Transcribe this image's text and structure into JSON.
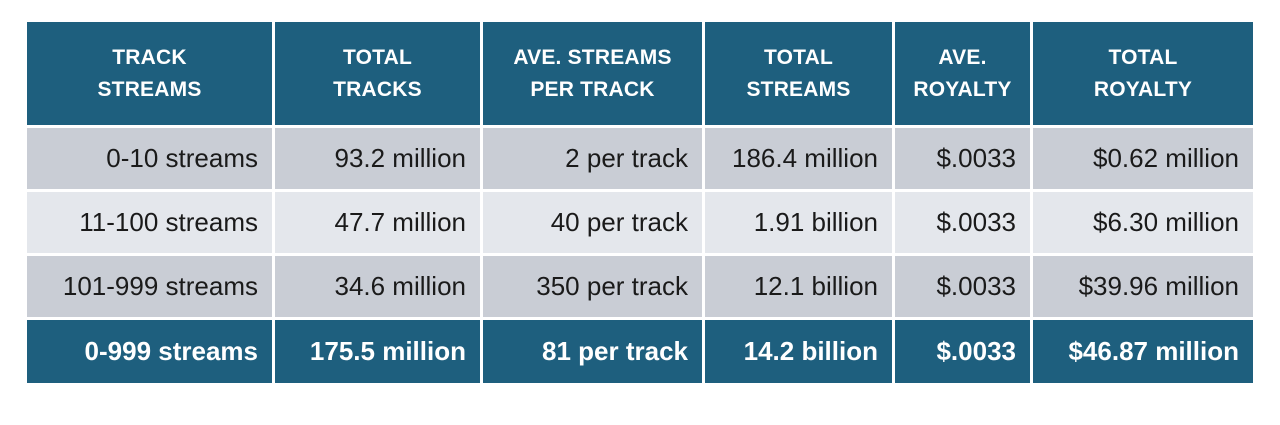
{
  "colors": {
    "header_bg": "#1e5f7e",
    "total_row_bg": "#1e5f7e",
    "row_odd_bg": "#c9cdd5",
    "row_even_bg": "#e4e7ec",
    "separator": "#ffffff",
    "header_text": "#ffffff",
    "body_text": "#1a1a1a",
    "page_bg": "#ffffff"
  },
  "chart_data": {
    "type": "table",
    "columns": [
      "TRACK\nSTREAMS",
      "TOTAL\nTRACKS",
      "AVE. STREAMS\nPER TRACK",
      "TOTAL\nSTREAMS",
      "AVE.\nROYALTY",
      "TOTAL\nROYALTY"
    ],
    "rows": [
      [
        "0-10 streams",
        "93.2 million",
        "2 per track",
        "186.4 million",
        "$.0033",
        "$0.62 million"
      ],
      [
        "11-100 streams",
        "47.7 million",
        "40 per track",
        "1.91 billion",
        "$.0033",
        "$6.30 million"
      ],
      [
        "101-999 streams",
        "34.6 million",
        "350 per track",
        "12.1 billion",
        "$.0033",
        "$39.96 million"
      ]
    ],
    "total_row": [
      "0-999 streams",
      "175.5 million",
      "81 per track",
      "14.2 billion",
      "$.0033",
      "$46.87 million"
    ],
    "notes": {
      "row_striping": "odd rows gray, even rows lighter gray",
      "total_row_style": "dark teal background, bold white text",
      "alignment": "body cells right-aligned, headers centered"
    }
  }
}
